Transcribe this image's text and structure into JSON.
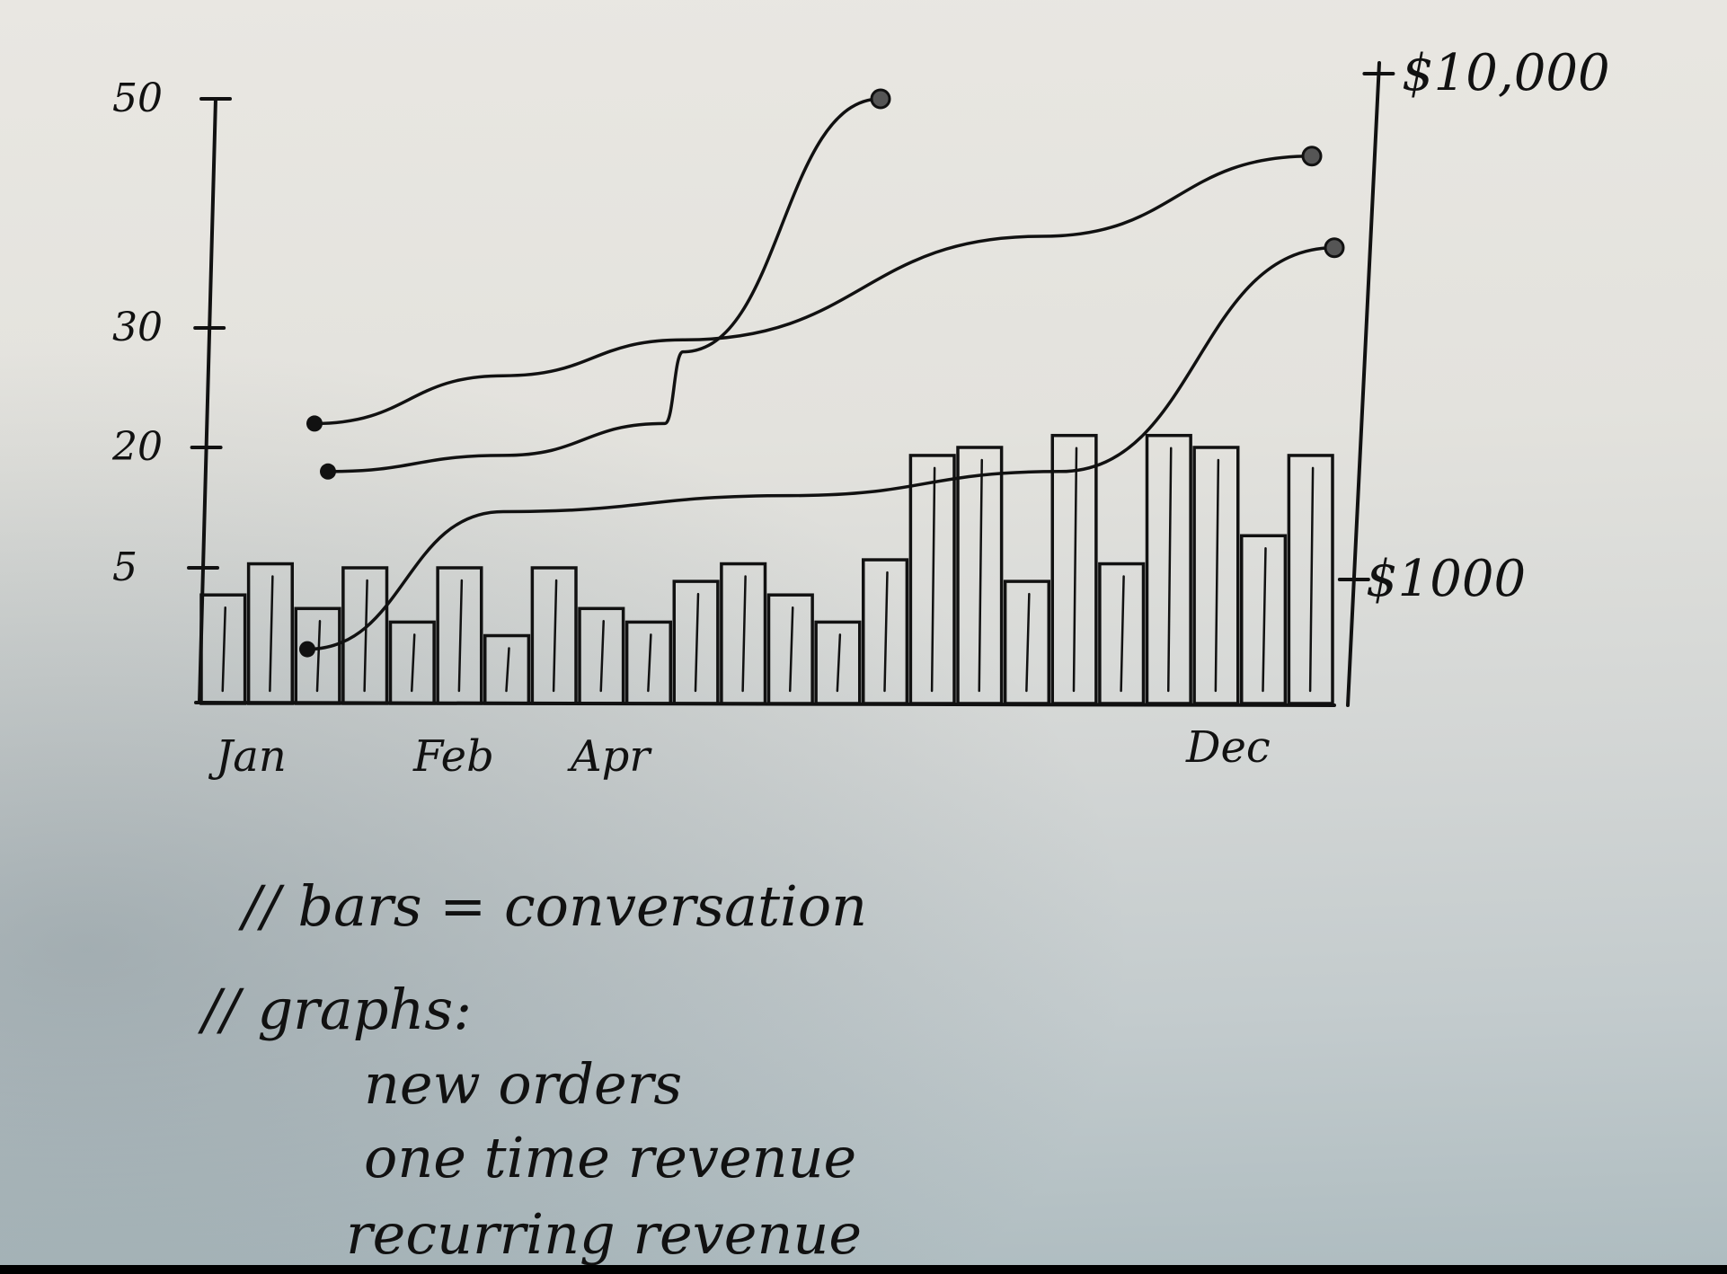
{
  "chart_data": {
    "type": "bar",
    "categories": [
      "Jan",
      "Feb",
      "Apr",
      "Dec"
    ],
    "bar_values": [
      4,
      5.5,
      3.5,
      5,
      3,
      5,
      2.5,
      5,
      3.5,
      3,
      4.5,
      5.5,
      4,
      3,
      6,
      19,
      20,
      4.5,
      21,
      5.5,
      21,
      20,
      9,
      19
    ],
    "left_axis": {
      "tick_labels": [
        "5",
        "20",
        "30",
        "50"
      ],
      "tick_values": [
        5,
        20,
        30,
        50
      ]
    },
    "right_axis": {
      "tick_labels": [
        "$1000",
        "$10,000"
      ]
    },
    "line_series": [
      {
        "values": [
          17,
          19,
          22,
          28,
          50
        ]
      },
      {
        "values": [
          22,
          26,
          29,
          38,
          45
        ]
      },
      {
        "values": [
          2,
          12,
          14,
          17,
          37
        ]
      }
    ],
    "grid": false
  },
  "notes": {
    "line1": "// bars = conversation",
    "line2": "// graphs:",
    "line3": "new orders",
    "line4": "one time revenue",
    "line5": "recurring revenue"
  },
  "colors": {
    "ink": "#111111",
    "paper": "#e6e4df"
  }
}
